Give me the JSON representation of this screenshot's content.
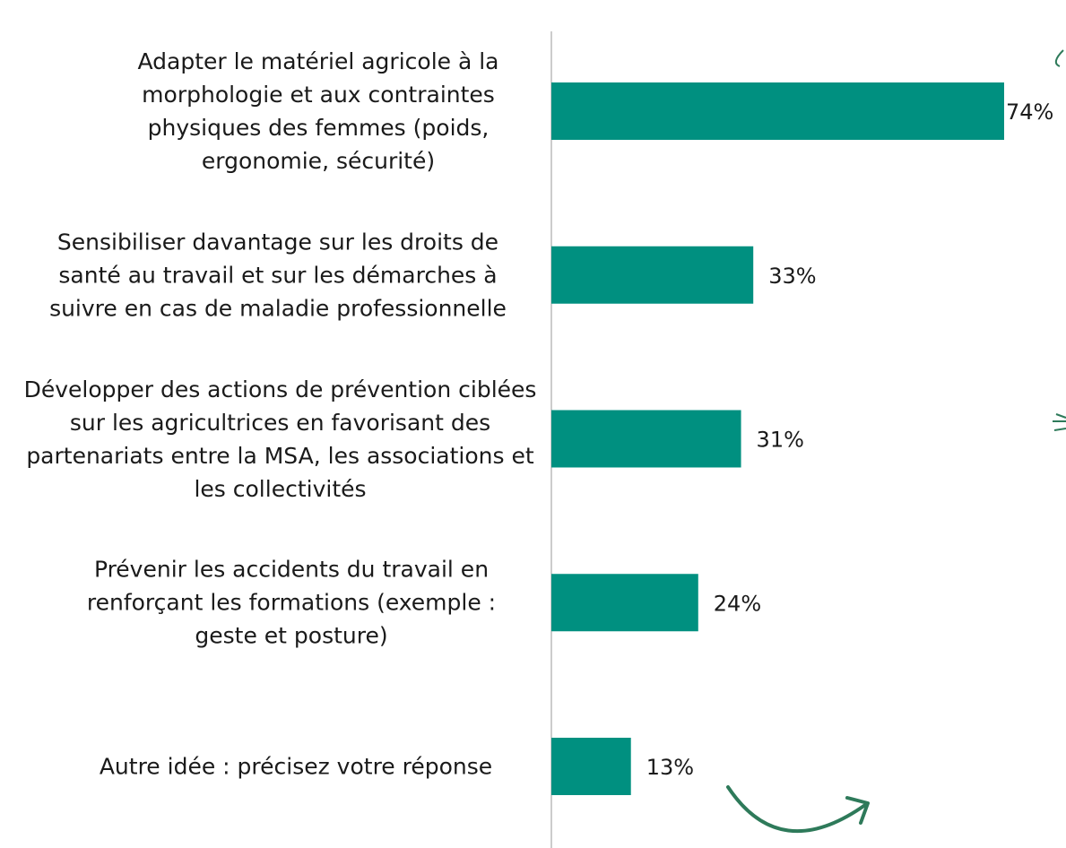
{
  "chart_data": {
    "type": "barh",
    "categories": [
      "Adapter le matériel agricole à la morphologie et aux contraintes physiques des femmes (poids, ergonomie, sécurité)",
      "Sensibiliser davantage sur les droits de santé au travail et sur les démarches à suivre en cas de maladie professionnelle",
      "Développer des actions de prévention ciblées sur les agricultrices en favorisant des partenariats entre la MSA, les associations et les collectivités",
      "Prévenir les accidents du travail en renforçant les formations (exemple : geste et posture)",
      "Autre idée : précisez votre réponse"
    ],
    "values": [
      74,
      33,
      31,
      24,
      13
    ],
    "value_labels": [
      "74%",
      "33%",
      "31%",
      "24%",
      "13%"
    ],
    "color": "#009080"
  }
}
